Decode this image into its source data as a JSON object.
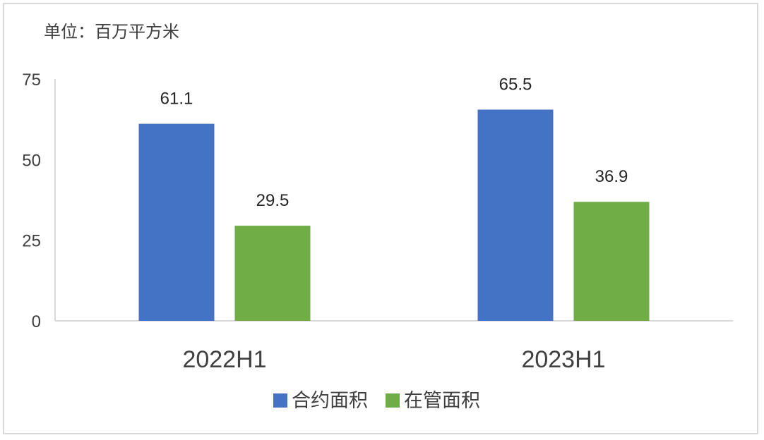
{
  "chart_data": {
    "type": "bar",
    "unit_label": "单位：百万平方米",
    "categories": [
      "2022H1",
      "2023H1"
    ],
    "series": [
      {
        "name": "合约面积",
        "values": [
          61.1,
          65.5
        ],
        "color": "#4472C4"
      },
      {
        "name": "在管面积",
        "values": [
          29.5,
          36.9
        ],
        "color": "#70AD47"
      }
    ],
    "yticks": [
      "0",
      "25",
      "50",
      "75"
    ],
    "ylim": [
      0,
      75
    ],
    "legend_position": "bottom",
    "grid": false
  }
}
